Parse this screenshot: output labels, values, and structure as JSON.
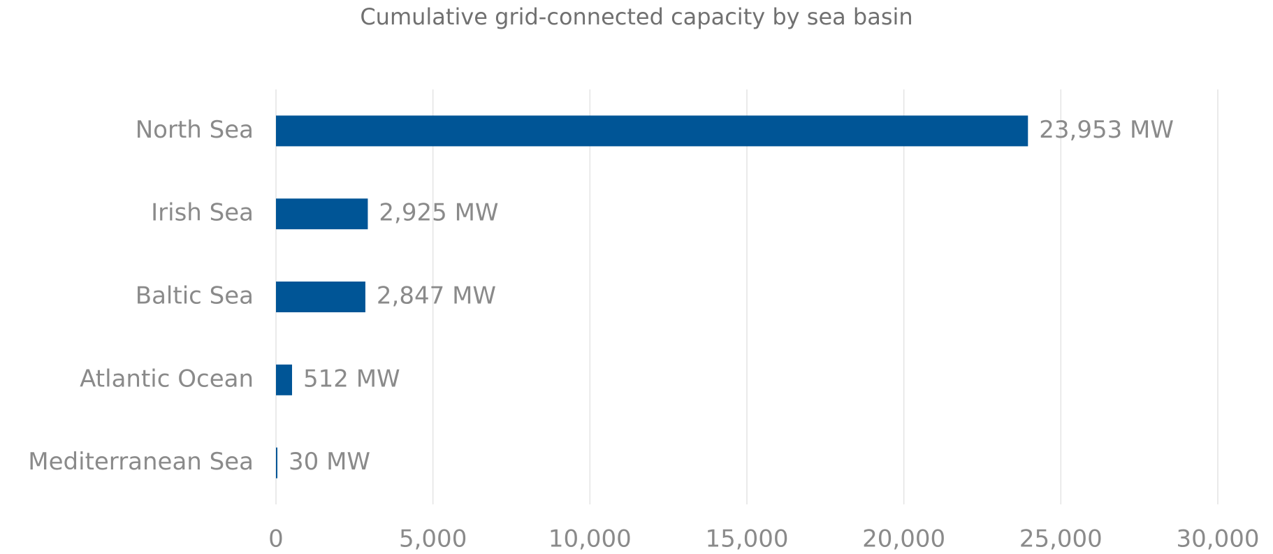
{
  "chart_data": {
    "type": "bar",
    "orientation": "horizontal",
    "title": "Cumulative grid-connected capacity by sea basin",
    "categories": [
      "North Sea",
      "Irish Sea",
      "Baltic Sea",
      "Atlantic Ocean",
      "Mediterranean Sea"
    ],
    "values": [
      23953,
      2925,
      2847,
      512,
      30
    ],
    "value_labels": [
      "23,953 MW",
      "2,925 MW",
      "2,847 MW",
      "512 MW",
      "30 MW"
    ],
    "color": "#005596",
    "xlim": [
      0,
      30000
    ],
    "xticks": [
      0,
      {
        "value": 5000,
        "label": "5,000"
      },
      {
        "value": 10000,
        "label": "10,000"
      },
      {
        "value": 15000,
        "label": "15,000"
      },
      {
        "value": 20000,
        "label": "20,000"
      },
      {
        "value": 25000,
        "label": "25,000"
      },
      {
        "value": 30000,
        "label": "30,000"
      }
    ],
    "grid": true
  }
}
